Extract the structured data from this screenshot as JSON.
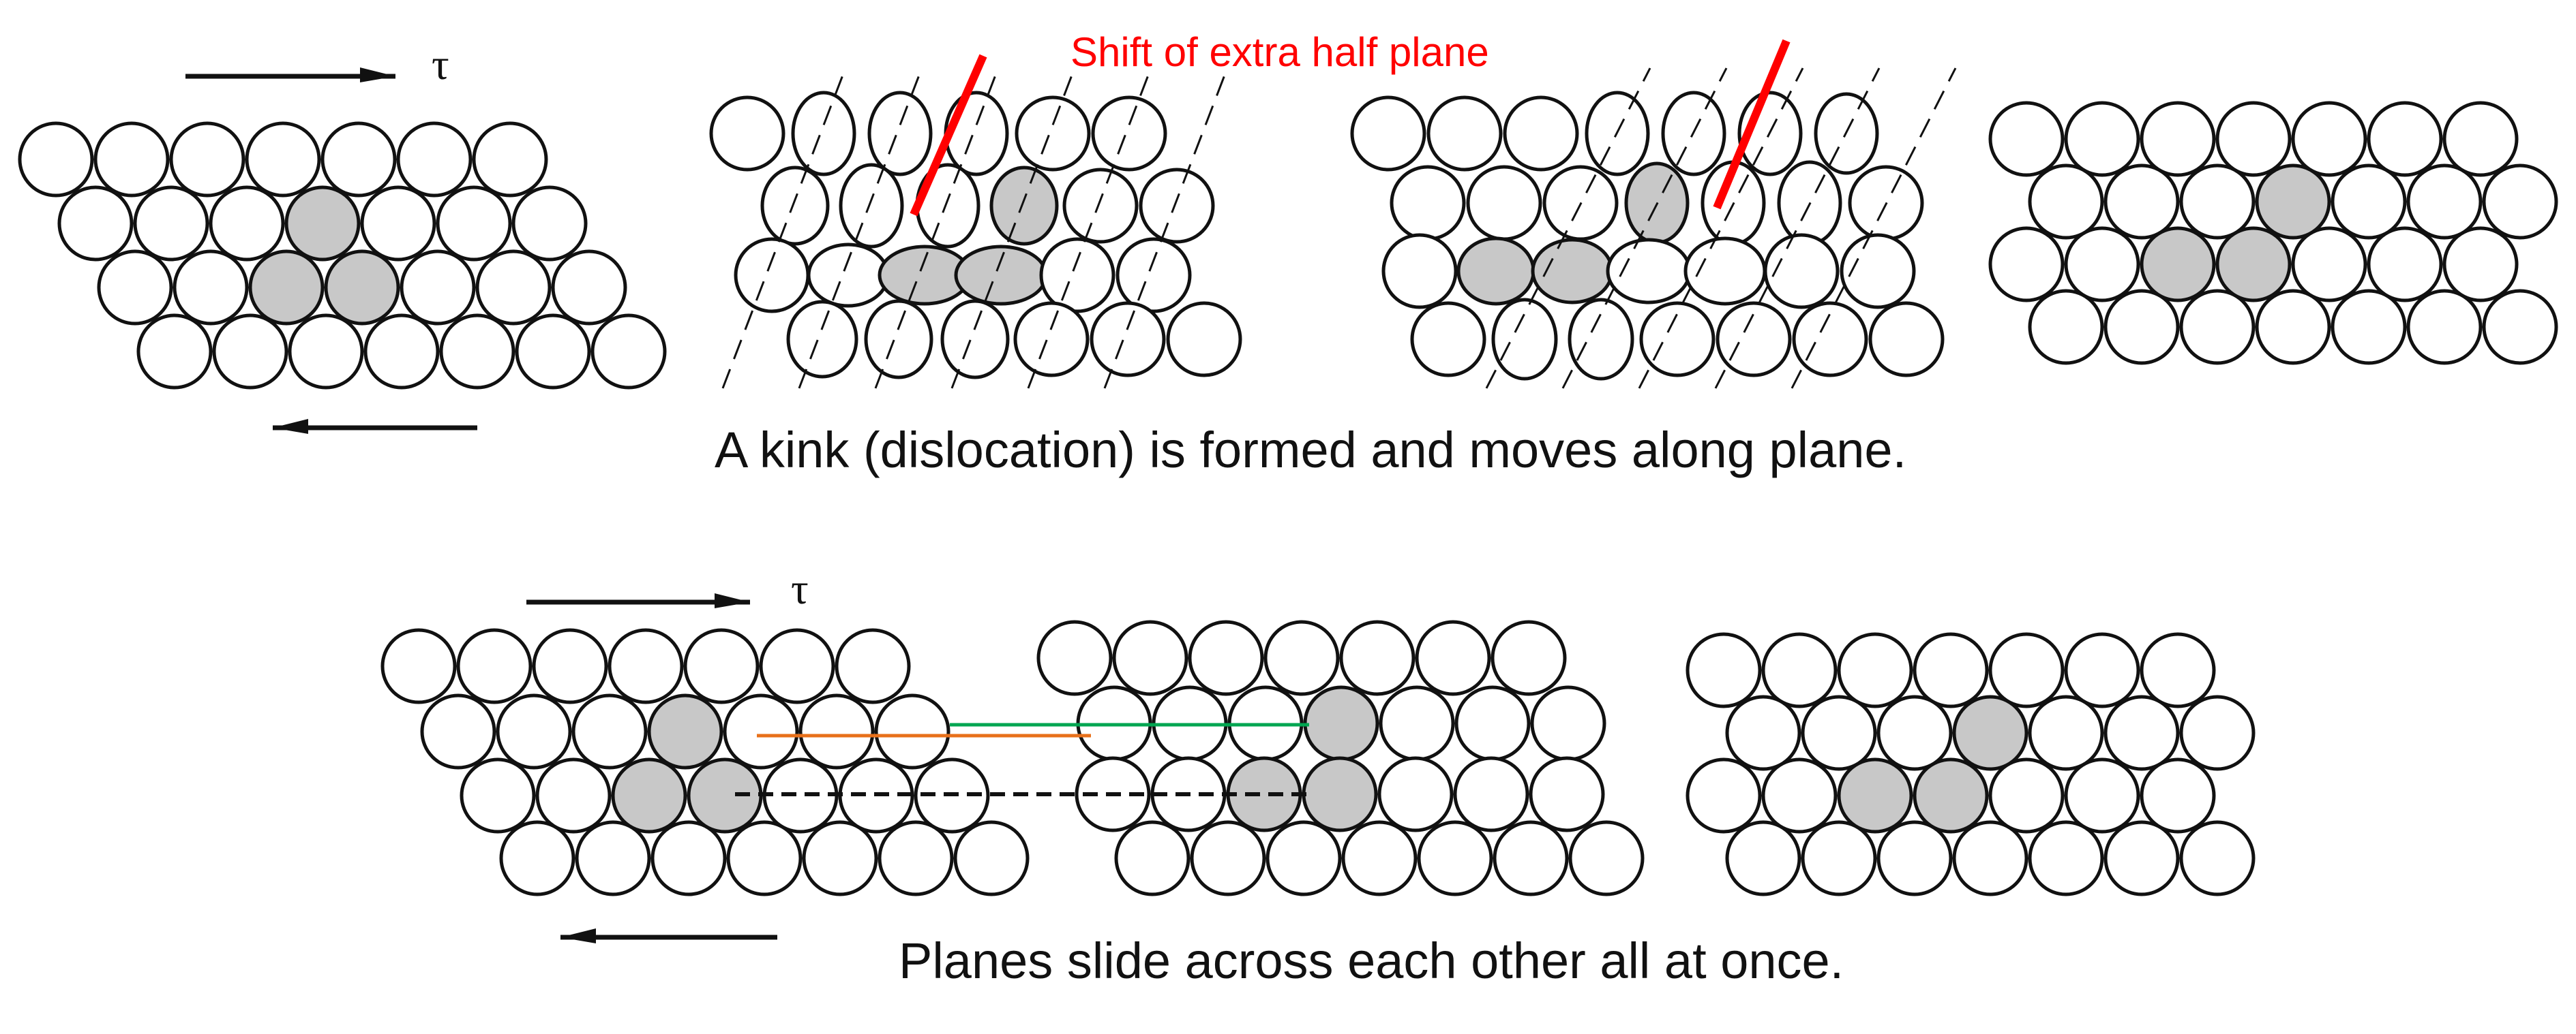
{
  "annotation": {
    "text": "Shift of extra half plane",
    "color": "#ff0000"
  },
  "top_row": {
    "caption": "A kink (dislocation) is formed and moves along plane.",
    "stress_symbol": "τ"
  },
  "bottom_row": {
    "caption": "Planes slide across each other all at once.",
    "stress_symbol": "τ"
  },
  "colors": {
    "atom_fill": "#ffffff",
    "atom_outline": "#111111",
    "highlight_fill": "#c8c8c8",
    "half_plane_marker": "#ff0000",
    "reference_line_green": "#00a651",
    "reference_line_orange": "#e8701a",
    "reference_line_dashed": "#111111"
  }
}
